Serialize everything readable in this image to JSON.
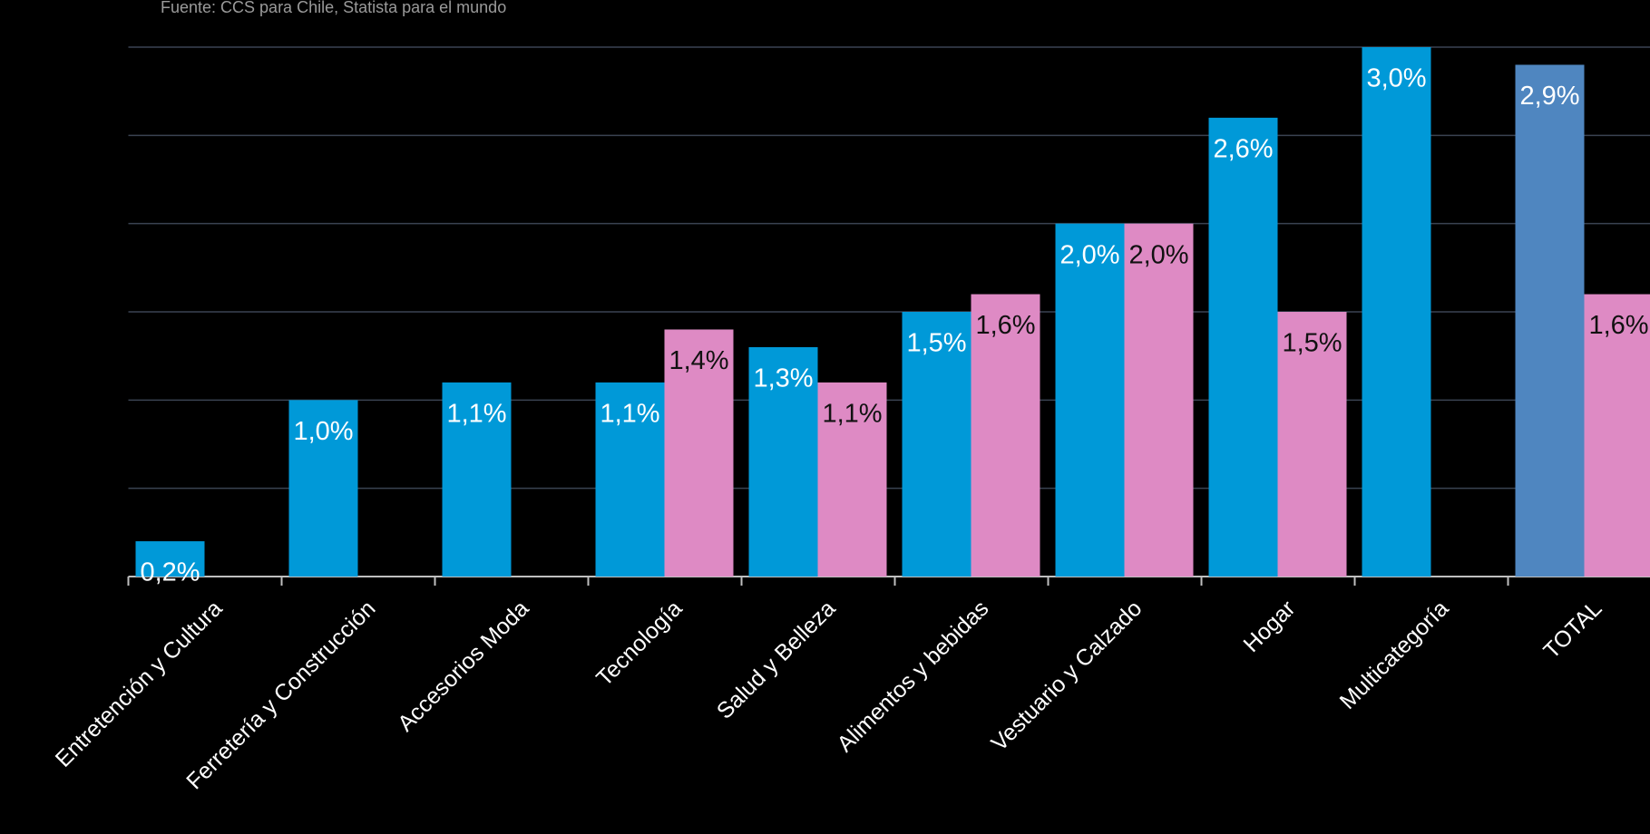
{
  "chart_data": {
    "type": "bar",
    "source": "Fuente: CCS para Chile, Statista para el mundo",
    "categories": [
      "Entretención y Cultura",
      "Ferretería y Construcción",
      "Accesorios Moda",
      "Tecnología",
      "Salud y Belleza",
      "Alimentos y bebidas",
      "Vestuario y Calzado",
      "Hogar",
      "Multicategoría",
      "TOTAL"
    ],
    "series": [
      {
        "color": "#0099d8",
        "colors": [
          "#0099d8",
          "#0099d8",
          "#0099d8",
          "#0099d8",
          "#0099d8",
          "#0099d8",
          "#0099d8",
          "#0099d8",
          "#0099d8",
          "#4f86c0"
        ],
        "label_color": "#ffffff",
        "values": [
          0.2,
          1.0,
          1.1,
          1.1,
          1.3,
          1.5,
          2.0,
          2.6,
          3.0,
          2.9
        ],
        "value_labels": [
          "0,2%",
          "1,0%",
          "1,1%",
          "1,1%",
          "1,3%",
          "1,5%",
          "2,0%",
          "2,6%",
          "3,0%",
          "2,9%"
        ]
      },
      {
        "color": "#de8ac4",
        "label_color": "#111111",
        "values": [
          null,
          null,
          null,
          1.4,
          1.1,
          1.6,
          2.0,
          1.5,
          null,
          1.6
        ],
        "value_labels": [
          null,
          null,
          null,
          "1,4%",
          "1,1%",
          "1,6%",
          "2,0%",
          "1,5%",
          null,
          "1,6%"
        ]
      }
    ],
    "ylim": [
      0,
      3
    ],
    "yticks": [
      0.5,
      1,
      1.5,
      2,
      2.5,
      3
    ],
    "grid": true
  }
}
